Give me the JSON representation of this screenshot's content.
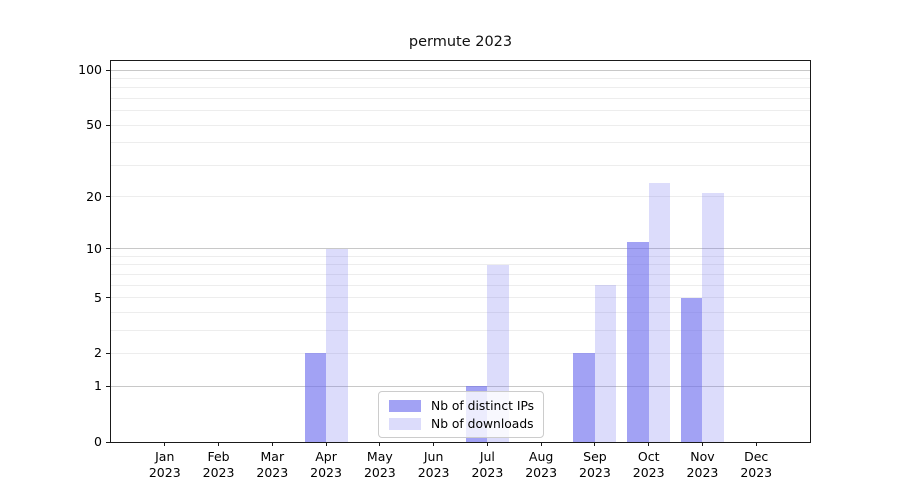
{
  "title": "permute 2023",
  "chart_data": {
    "type": "bar",
    "title": "permute 2023",
    "categories": [
      "Jan 2023",
      "Feb 2023",
      "Mar 2023",
      "Apr 2023",
      "May 2023",
      "Jun 2023",
      "Jul 2023",
      "Aug 2023",
      "Sep 2023",
      "Oct 2023",
      "Nov 2023",
      "Dec 2023"
    ],
    "series": [
      {
        "name": "Nb of distinct IPs",
        "color": "rgba(108,108,238,0.63)",
        "values": [
          0,
          0,
          0,
          2,
          0,
          0,
          1,
          0,
          2,
          11,
          5,
          0
        ]
      },
      {
        "name": "Nb of downloads",
        "color": "rgba(108,108,238,0.24)",
        "values": [
          0,
          0,
          0,
          10,
          0,
          0,
          8,
          0,
          6,
          24,
          21,
          0
        ]
      }
    ],
    "xlabel": "",
    "ylabel": "",
    "yscale": "log1p",
    "yticks": [
      0,
      1,
      2,
      5,
      10,
      20,
      50,
      100
    ],
    "ylim": [
      0,
      112
    ],
    "grid": {
      "minor": [
        2,
        3,
        4,
        5,
        6,
        7,
        8,
        9,
        20,
        30,
        40,
        50,
        60,
        70,
        80,
        90
      ],
      "major": [
        1,
        10,
        100
      ]
    },
    "legend_position": "lower center",
    "grid_on": true
  }
}
